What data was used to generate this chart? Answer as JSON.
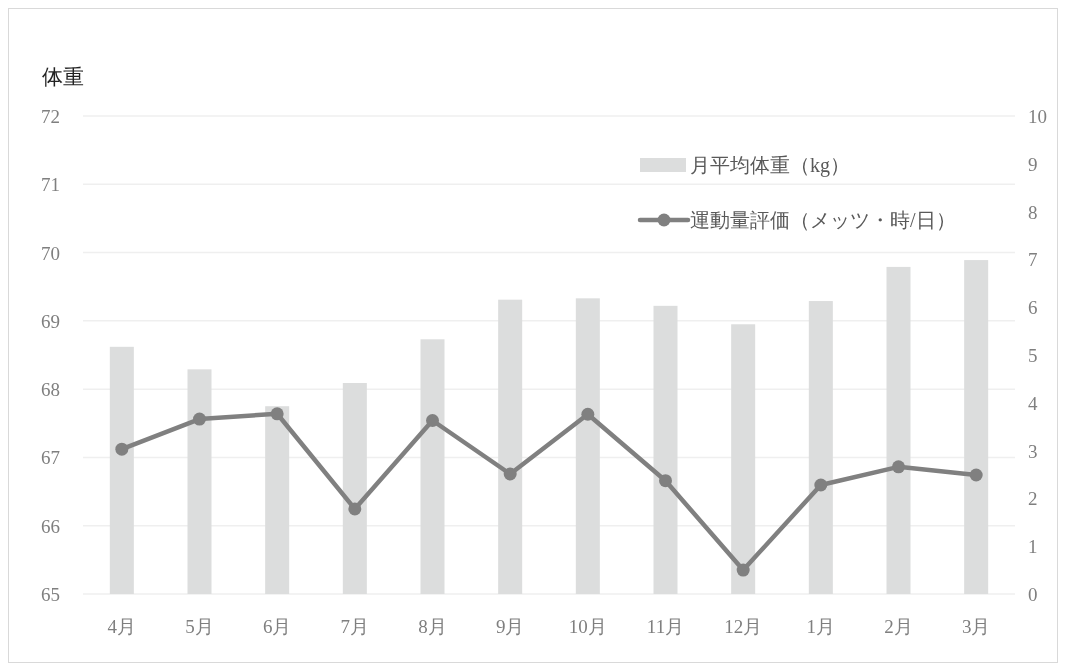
{
  "chart_data": {
    "type": "bar",
    "ylabel": "体重",
    "categories": [
      "4月",
      "5月",
      "6月",
      "7月",
      "8月",
      "9月",
      "10月",
      "11月",
      "12月",
      "1月",
      "2月",
      "3月"
    ],
    "series": [
      {
        "name": "月平均体重（kg）",
        "color": "#dcdddd",
        "values": [
          68.62,
          68.29,
          67.75,
          68.09,
          68.73,
          69.31,
          69.33,
          69.22,
          68.95,
          69.29,
          69.79,
          69.89
        ]
      },
      {
        "name": "運動量評価（メッツ・時/日）",
        "type": "line",
        "axis": "y2",
        "color": "#808080",
        "marker": "circle",
        "values": [
          3.03,
          3.66,
          3.77,
          1.78,
          3.63,
          2.51,
          3.76,
          2.37,
          0.5,
          2.28,
          2.66,
          2.49
        ]
      }
    ],
    "ylim": [
      65,
      72
    ],
    "yticks": [
      65,
      66,
      67,
      68,
      69,
      70,
      71,
      72
    ],
    "y2lim": [
      0,
      10
    ],
    "y2ticks": [
      0,
      1,
      2,
      3,
      4,
      5,
      6,
      7,
      8,
      9,
      10
    ],
    "grid": "y",
    "legend": "top right"
  }
}
